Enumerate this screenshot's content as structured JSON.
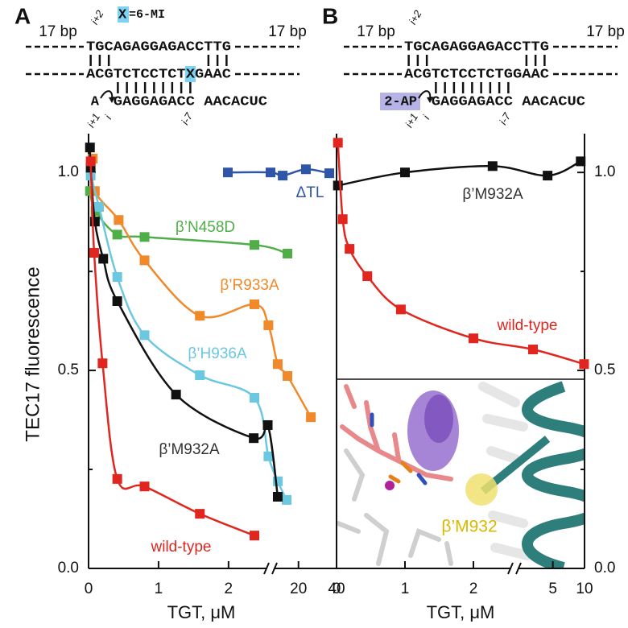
{
  "panels": [
    {
      "label": "A",
      "left_flank": "17 bp",
      "right_flank": "17 bp",
      "top_strand": "TGCAGAGGAGACCTTG",
      "bottom_strand": [
        "ACGTCTCCTCT",
        "X",
        "GAAC"
      ],
      "highlight_color": "#7fd3f2",
      "rna_5prime": "A",
      "rna": [
        "GAGGAGACC",
        "AACACUC"
      ],
      "positions": [
        "i+2",
        "i+1",
        "i",
        "i-7"
      ],
      "legend": [
        "X",
        "=6-MI"
      ]
    },
    {
      "label": "B",
      "left_flank": "17 bp",
      "right_flank": "17 bp",
      "top_strand": "TGCAGAGGAGACCTTG",
      "bottom_strand": [
        "ACGTCTCCTCTGGAAC"
      ],
      "rna_5prime": "2-AP",
      "rna": [
        "GAGGAGACC",
        "AACACUC"
      ],
      "positions": [
        "i+2",
        "i+1",
        "i",
        "i-7"
      ]
    }
  ],
  "chart_data": [
    {
      "type": "scatter",
      "ylabel": "TEC17 fluorescence",
      "xlabel": "TGT, μM",
      "ylim": [
        0,
        1.1
      ],
      "yticks": [
        {
          "value": 0,
          "label": "0.0"
        },
        0.5,
        {
          "value": 1,
          "label": "1.0"
        }
      ],
      "yminorticks": [
        0.25,
        0.75
      ],
      "y_side": "left",
      "xsegments": [
        {
          "xlim": [
            0,
            2.6
          ],
          "xticks": [
            0,
            1,
            2
          ]
        },
        {
          "xlim": [
            7,
            40
          ],
          "xticks": [
            20,
            40
          ]
        }
      ],
      "series": [
        {
          "name": "ΔTL",
          "color": "#2f55a8",
          "x": [
            1.99,
            2.6,
            11.7,
            23.9,
            36.2
          ],
          "values": [
            1.0,
            1.0,
            0.992,
            1.008,
            0.998
          ]
        },
        {
          "name": "β’N458D",
          "color": "#4fae48",
          "x": [
            0.02,
            0.1,
            0.41,
            0.8,
            2.37,
            14.2
          ],
          "values": [
            0.953,
            0.902,
            0.843,
            0.837,
            0.817,
            0.795
          ]
        },
        {
          "name": "β’R933A",
          "color": "#f0892a",
          "x": [
            0.06,
            0.09,
            0.43,
            0.8,
            1.59,
            2.37,
            2.57,
            9.1,
            14.2,
            26.5
          ],
          "values": [
            1.035,
            0.953,
            0.88,
            0.778,
            0.638,
            0.667,
            0.614,
            0.516,
            0.486,
            0.382
          ]
        },
        {
          "name": "β’H936A",
          "color": "#6cc7e0",
          "x": [
            0.03,
            0.15,
            0.41,
            0.8,
            1.59,
            2.37,
            2.57,
            9.1,
            13.8
          ],
          "values": [
            0.992,
            0.913,
            0.736,
            0.589,
            0.488,
            0.431,
            0.283,
            0.22,
            0.173
          ]
        },
        {
          "name": "β’M932A",
          "color": "#111111",
          "x": [
            0.02,
            0.03,
            0.09,
            0.21,
            0.41,
            1.25,
            2.36,
            2.56,
            9.1
          ],
          "values": [
            1.063,
            1.012,
            0.876,
            0.782,
            0.675,
            0.439,
            0.329,
            0.362,
            0.181
          ]
        },
        {
          "name": "wild-type",
          "color": "#e0261f",
          "x": [
            0.03,
            0.08,
            0.2,
            0.41,
            0.8,
            1.59,
            2.37
          ],
          "values": [
            1.028,
            0.797,
            0.518,
            0.226,
            0.207,
            0.138,
            0.083
          ]
        }
      ]
    },
    {
      "type": "scatter",
      "xlabel": "TGT, μM",
      "ylim": [
        0,
        1.1
      ],
      "yticks": [
        {
          "value": 0,
          "label": "0.0"
        },
        0.5,
        {
          "value": 1,
          "label": "1.0"
        }
      ],
      "yminorticks": [
        0.25,
        0.75
      ],
      "y_side": "right",
      "xsegments": [
        {
          "xlim": [
            0,
            2.6
          ],
          "xticks": [
            0,
            1,
            2
          ]
        },
        {
          "xlim": [
            2.2,
            10
          ],
          "xticks": [
            5,
            10
          ],
          "log": true
        }
      ],
      "series": [
        {
          "name": "β’M932A",
          "color": "#111111",
          "x": [
            0.02,
            1.0,
            2.28,
            4.46,
            9.2
          ],
          "values": [
            0.967,
            1.0,
            1.016,
            0.992,
            1.028
          ]
        },
        {
          "name": "wild-type",
          "color": "#e0261f",
          "x": [
            0.02,
            0.09,
            0.19,
            0.45,
            0.94,
            2.0,
            3.24,
            9.9
          ],
          "values": [
            1.075,
            0.882,
            0.807,
            0.738,
            0.654,
            0.581,
            0.553,
            0.516
          ]
        }
      ],
      "structure_label": "β’M932"
    }
  ]
}
